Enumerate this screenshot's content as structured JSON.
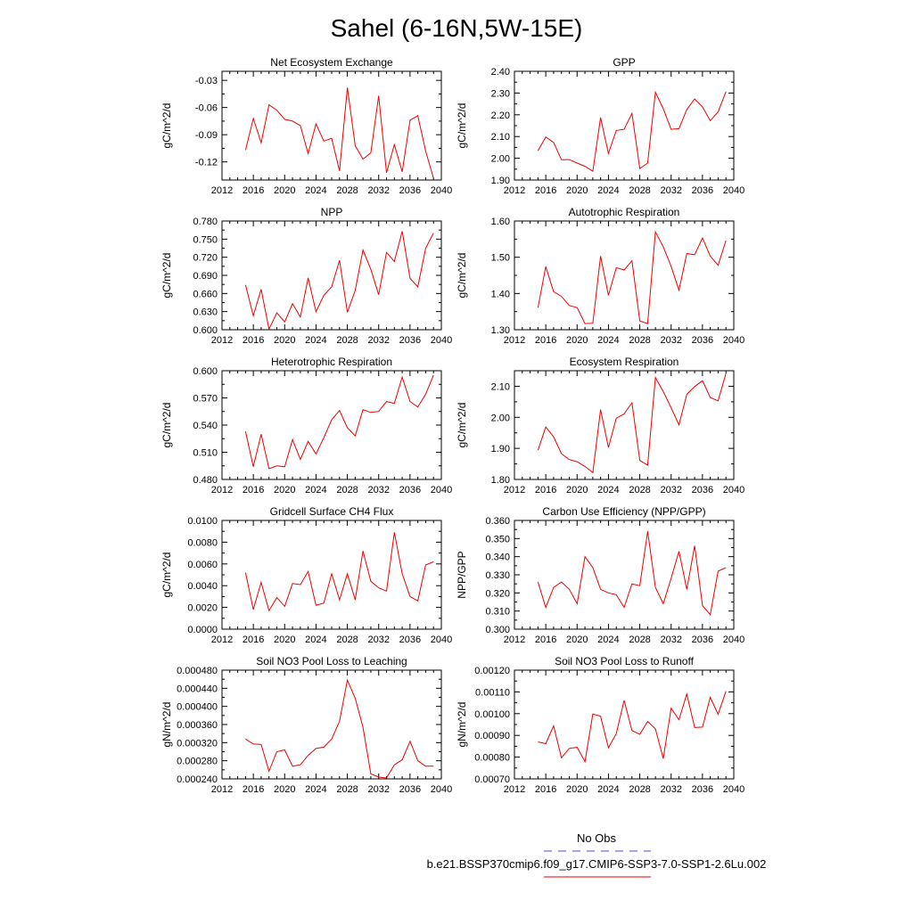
{
  "figure": {
    "title": "Sahel (6-16N,5W-15E)",
    "legend": {
      "entries": [
        {
          "label": "No Obs",
          "color": "#4a4ad8",
          "style": "dashed"
        },
        {
          "label": "b.e21.BSSP370cmip6.f09_g17.CMIP6-SSP3-7.0-SSP1-2.6Lu.002",
          "color": "#ee0000",
          "style": "solid"
        }
      ]
    }
  },
  "chart_data": [
    {
      "type": "line",
      "title": "Net Ecosystem Exchange",
      "ylabel": "gC/m^2/d",
      "xlim": [
        2012,
        2040
      ],
      "xticks": [
        "2012",
        "2016",
        "2020",
        "2024",
        "2028",
        "2032",
        "2036",
        "2040"
      ],
      "ylim": [
        -0.14,
        -0.02
      ],
      "yticks": [
        "-0.03",
        "-0.06",
        "-0.09",
        "-0.12"
      ],
      "ytick_values": [
        -0.03,
        -0.06,
        -0.09,
        -0.12
      ],
      "x": [
        2015,
        2016,
        2017,
        2018,
        2019,
        2020,
        2021,
        2022,
        2023,
        2024,
        2025,
        2026,
        2027,
        2028,
        2029,
        2030,
        2031,
        2032,
        2033,
        2034,
        2035,
        2036,
        2037,
        2038,
        2039
      ],
      "series": [
        {
          "color": "#ee0000",
          "values": [
            -0.107,
            -0.072,
            -0.099,
            -0.057,
            -0.063,
            -0.073,
            -0.075,
            -0.08,
            -0.111,
            -0.078,
            -0.097,
            -0.094,
            -0.13,
            -0.038,
            -0.102,
            -0.117,
            -0.11,
            -0.047,
            -0.132,
            -0.101,
            -0.131,
            -0.074,
            -0.069,
            -0.108,
            -0.138
          ]
        }
      ]
    },
    {
      "type": "line",
      "title": "GPP",
      "ylabel": "gC/m^2/d",
      "xlim": [
        2012,
        2040
      ],
      "xticks": [
        "2012",
        "2016",
        "2020",
        "2024",
        "2028",
        "2032",
        "2036",
        "2040"
      ],
      "ylim": [
        1.9,
        2.4
      ],
      "yticks": [
        "1.90",
        "2.00",
        "2.10",
        "2.20",
        "2.30",
        "2.40"
      ],
      "ytick_values": [
        1.9,
        2.0,
        2.1,
        2.2,
        2.3,
        2.4
      ],
      "x": [
        2015,
        2016,
        2017,
        2018,
        2019,
        2020,
        2021,
        2022,
        2023,
        2024,
        2025,
        2026,
        2027,
        2028,
        2029,
        2030,
        2031,
        2032,
        2033,
        2034,
        2035,
        2036,
        2037,
        2038,
        2039
      ],
      "series": [
        {
          "color": "#ee0000",
          "values": [
            2.035,
            2.098,
            2.073,
            1.993,
            1.994,
            1.978,
            1.963,
            1.94,
            2.187,
            2.022,
            2.128,
            2.133,
            2.206,
            1.953,
            1.978,
            2.304,
            2.228,
            2.133,
            2.136,
            2.224,
            2.273,
            2.236,
            2.173,
            2.213,
            2.306
          ]
        }
      ]
    },
    {
      "type": "line",
      "title": "NPP",
      "ylabel": "gC/m^2/d",
      "xlim": [
        2012,
        2040
      ],
      "xticks": [
        "2012",
        "2016",
        "2020",
        "2024",
        "2028",
        "2032",
        "2036",
        "2040"
      ],
      "ylim": [
        0.6,
        0.78
      ],
      "yticks": [
        "0.600",
        "0.630",
        "0.660",
        "0.690",
        "0.720",
        "0.750",
        "0.780"
      ],
      "ytick_values": [
        0.6,
        0.63,
        0.66,
        0.69,
        0.72,
        0.75,
        0.78
      ],
      "x": [
        2015,
        2016,
        2017,
        2018,
        2019,
        2020,
        2021,
        2022,
        2023,
        2024,
        2025,
        2026,
        2027,
        2028,
        2029,
        2030,
        2031,
        2032,
        2033,
        2034,
        2035,
        2036,
        2037,
        2038,
        2039
      ],
      "series": [
        {
          "color": "#ee0000",
          "values": [
            0.674,
            0.623,
            0.667,
            0.601,
            0.628,
            0.613,
            0.643,
            0.621,
            0.686,
            0.63,
            0.657,
            0.671,
            0.715,
            0.629,
            0.665,
            0.732,
            0.7,
            0.658,
            0.728,
            0.713,
            0.763,
            0.685,
            0.671,
            0.735,
            0.76
          ]
        }
      ]
    },
    {
      "type": "line",
      "title": "Autotrophic Respiration",
      "ylabel": "gC/m^2/d",
      "xlim": [
        2012,
        2040
      ],
      "xticks": [
        "2012",
        "2016",
        "2020",
        "2024",
        "2028",
        "2032",
        "2036",
        "2040"
      ],
      "ylim": [
        1.3,
        1.6
      ],
      "yticks": [
        "1.30",
        "1.40",
        "1.50",
        "1.60"
      ],
      "ytick_values": [
        1.3,
        1.4,
        1.5,
        1.6
      ],
      "x": [
        2015,
        2016,
        2017,
        2018,
        2019,
        2020,
        2021,
        2022,
        2023,
        2024,
        2025,
        2026,
        2027,
        2028,
        2029,
        2030,
        2031,
        2032,
        2033,
        2034,
        2035,
        2036,
        2037,
        2038,
        2039
      ],
      "series": [
        {
          "color": "#ee0000",
          "values": [
            1.361,
            1.474,
            1.405,
            1.392,
            1.367,
            1.361,
            1.317,
            1.318,
            1.503,
            1.395,
            1.471,
            1.465,
            1.49,
            1.324,
            1.317,
            1.57,
            1.529,
            1.475,
            1.409,
            1.51,
            1.507,
            1.553,
            1.503,
            1.478,
            1.546
          ]
        }
      ]
    },
    {
      "type": "line",
      "title": "Heterotrophic Respiration",
      "ylabel": "gC/m^2/d",
      "xlim": [
        2012,
        2040
      ],
      "xticks": [
        "2012",
        "2016",
        "2020",
        "2024",
        "2028",
        "2032",
        "2036",
        "2040"
      ],
      "ylim": [
        0.48,
        0.6
      ],
      "yticks": [
        "0.480",
        "0.510",
        "0.540",
        "0.570",
        "0.600"
      ],
      "ytick_values": [
        0.48,
        0.51,
        0.54,
        0.57,
        0.6
      ],
      "x": [
        2015,
        2016,
        2017,
        2018,
        2019,
        2020,
        2021,
        2022,
        2023,
        2024,
        2025,
        2026,
        2027,
        2028,
        2029,
        2030,
        2031,
        2032,
        2033,
        2034,
        2035,
        2036,
        2037,
        2038,
        2039
      ],
      "series": [
        {
          "color": "#ee0000",
          "values": [
            0.533,
            0.494,
            0.53,
            0.492,
            0.495,
            0.494,
            0.524,
            0.502,
            0.522,
            0.508,
            0.526,
            0.546,
            0.556,
            0.537,
            0.528,
            0.557,
            0.554,
            0.555,
            0.566,
            0.564,
            0.593,
            0.566,
            0.56,
            0.574,
            0.595
          ]
        }
      ]
    },
    {
      "type": "line",
      "title": "Ecosystem Respiration",
      "ylabel": "gC/m^2/d",
      "xlim": [
        2012,
        2040
      ],
      "xticks": [
        "2012",
        "2016",
        "2020",
        "2024",
        "2028",
        "2032",
        "2036",
        "2040"
      ],
      "ylim": [
        1.8,
        2.15
      ],
      "yticks": [
        "1.80",
        "1.90",
        "2.00",
        "2.10"
      ],
      "ytick_values": [
        1.8,
        1.9,
        2.0,
        2.1
      ],
      "x": [
        2015,
        2016,
        2017,
        2018,
        2019,
        2020,
        2021,
        2022,
        2023,
        2024,
        2025,
        2026,
        2027,
        2028,
        2029,
        2030,
        2031,
        2032,
        2033,
        2034,
        2035,
        2036,
        2037,
        2038,
        2039
      ],
      "series": [
        {
          "color": "#ee0000",
          "values": [
            1.894,
            1.969,
            1.937,
            1.883,
            1.864,
            1.857,
            1.842,
            1.822,
            2.025,
            1.903,
            1.997,
            2.011,
            2.047,
            1.861,
            1.846,
            2.128,
            2.083,
            2.031,
            1.976,
            2.074,
            2.099,
            2.118,
            2.064,
            2.053,
            2.141
          ]
        }
      ]
    },
    {
      "type": "line",
      "title": "Gridcell Surface CH4 Flux",
      "ylabel": "gC/m^2/d",
      "xlim": [
        2012,
        2040
      ],
      "xticks": [
        "2012",
        "2016",
        "2020",
        "2024",
        "2028",
        "2032",
        "2036",
        "2040"
      ],
      "ylim": [
        0.0,
        0.01
      ],
      "yticks": [
        "0.0000",
        "0.0020",
        "0.0040",
        "0.0060",
        "0.0080",
        "0.0100"
      ],
      "ytick_values": [
        0.0,
        0.002,
        0.004,
        0.006,
        0.008,
        0.01
      ],
      "x": [
        2015,
        2016,
        2017,
        2018,
        2019,
        2020,
        2021,
        2022,
        2023,
        2024,
        2025,
        2026,
        2027,
        2028,
        2029,
        2030,
        2031,
        2032,
        2033,
        2034,
        2035,
        2036,
        2037,
        2038,
        2039
      ],
      "series": [
        {
          "color": "#ee0000",
          "values": [
            0.0052,
            0.0018,
            0.0043,
            0.0017,
            0.0029,
            0.0021,
            0.0042,
            0.0041,
            0.0053,
            0.0022,
            0.0024,
            0.0051,
            0.0027,
            0.0051,
            0.0027,
            0.0072,
            0.0044,
            0.0038,
            0.0035,
            0.0089,
            0.0051,
            0.003,
            0.0026,
            0.0059,
            0.0062
          ]
        }
      ]
    },
    {
      "type": "line",
      "title": "Carbon Use Efficiency (NPP/GPP)",
      "ylabel": "NPP/GPP",
      "xlim": [
        2012,
        2040
      ],
      "xticks": [
        "2012",
        "2016",
        "2020",
        "2024",
        "2028",
        "2032",
        "2036",
        "2040"
      ],
      "ylim": [
        0.3,
        0.36
      ],
      "yticks": [
        "0.300",
        "0.310",
        "0.320",
        "0.330",
        "0.340",
        "0.350",
        "0.360"
      ],
      "ytick_values": [
        0.3,
        0.31,
        0.32,
        0.33,
        0.34,
        0.35,
        0.36
      ],
      "x": [
        2015,
        2016,
        2017,
        2018,
        2019,
        2020,
        2021,
        2022,
        2023,
        2024,
        2025,
        2026,
        2027,
        2028,
        2029,
        2030,
        2031,
        2032,
        2033,
        2034,
        2035,
        2036,
        2037,
        2038,
        2039
      ],
      "series": [
        {
          "color": "#ee0000",
          "values": [
            0.326,
            0.312,
            0.323,
            0.326,
            0.322,
            0.314,
            0.34,
            0.334,
            0.322,
            0.32,
            0.319,
            0.312,
            0.325,
            0.324,
            0.354,
            0.323,
            0.314,
            0.328,
            0.343,
            0.322,
            0.346,
            0.313,
            0.308,
            0.332,
            0.334
          ]
        }
      ]
    },
    {
      "type": "line",
      "title": "Soil NO3 Pool Loss to Leaching",
      "ylabel": "gN/m^2/d",
      "xlim": [
        2012,
        2040
      ],
      "xticks": [
        "2012",
        "2016",
        "2020",
        "2024",
        "2028",
        "2032",
        "2036",
        "2040"
      ],
      "ylim": [
        0.00024,
        0.00048
      ],
      "yticks": [
        "0.000240",
        "0.000280",
        "0.000320",
        "0.000360",
        "0.000400",
        "0.000440",
        "0.000480"
      ],
      "ytick_values": [
        0.00024,
        0.00028,
        0.00032,
        0.00036,
        0.0004,
        0.00044,
        0.00048
      ],
      "x": [
        2015,
        2016,
        2017,
        2018,
        2019,
        2020,
        2021,
        2022,
        2023,
        2024,
        2025,
        2026,
        2027,
        2028,
        2029,
        2030,
        2031,
        2032,
        2033,
        2034,
        2035,
        2036,
        2037,
        2038,
        2039
      ],
      "series": [
        {
          "color": "#ee0000",
          "values": [
            0.000328,
            0.000317,
            0.000316,
            0.000257,
            0.0003,
            0.000304,
            0.000268,
            0.000271,
            0.000292,
            0.000307,
            0.00031,
            0.000328,
            0.000367,
            0.000458,
            0.000418,
            0.000354,
            0.000251,
            0.000244,
            0.000242,
            0.000271,
            0.000282,
            0.000323,
            0.00028,
            0.000268,
            0.000268
          ]
        }
      ]
    },
    {
      "type": "line",
      "title": "Soil NO3 Pool Loss to Runoff",
      "ylabel": "gN/m^2/d",
      "xlim": [
        2012,
        2040
      ],
      "xticks": [
        "2012",
        "2016",
        "2020",
        "2024",
        "2028",
        "2032",
        "2036",
        "2040"
      ],
      "ylim": [
        0.0007,
        0.0012
      ],
      "yticks": [
        "0.00070",
        "0.00080",
        "0.00090",
        "0.00100",
        "0.00110",
        "0.00120"
      ],
      "ytick_values": [
        0.0007,
        0.0008,
        0.0009,
        0.001,
        0.0011,
        0.0012
      ],
      "x": [
        2015,
        2016,
        2017,
        2018,
        2019,
        2020,
        2021,
        2022,
        2023,
        2024,
        2025,
        2026,
        2027,
        2028,
        2029,
        2030,
        2031,
        2032,
        2033,
        2034,
        2035,
        2036,
        2037,
        2038,
        2039
      ],
      "series": [
        {
          "color": "#ee0000",
          "values": [
            0.00087,
            0.000862,
            0.000944,
            0.000797,
            0.00084,
            0.000845,
            0.000779,
            0.000998,
            0.000988,
            0.000843,
            0.000908,
            0.001061,
            0.000922,
            0.000905,
            0.000964,
            0.00093,
            0.000793,
            0.001025,
            0.000972,
            0.00109,
            0.000936,
            0.000938,
            0.001075,
            0.000997,
            0.001103
          ]
        }
      ]
    }
  ]
}
